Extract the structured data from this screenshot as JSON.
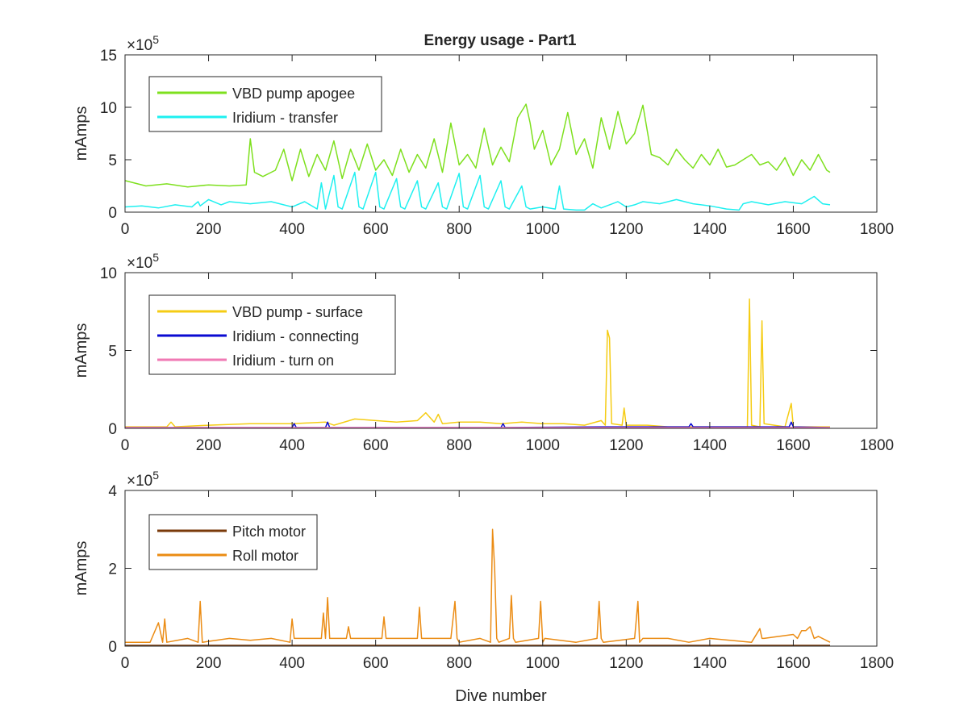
{
  "figure_title": "Energy usage - Part1",
  "colors": {
    "vbd_apogee": "#7ee01e",
    "iridium_transfer": "#1ef0f0",
    "vbd_surface": "#f5cc14",
    "iridium_connecting": "#0a0ad2",
    "iridium_turn_on": "#f07ab4",
    "pitch_motor": "#7a3a0a",
    "roll_motor": "#eb8c14",
    "axis": "#262626"
  },
  "chart_data": [
    {
      "type": "line",
      "title": "Energy usage - Part1",
      "xlabel": "",
      "ylabel": "mAmps",
      "exponent_label": "×10",
      "exponent_power": "5",
      "xlim": [
        0,
        1800
      ],
      "ylim": [
        0,
        15
      ],
      "xticks": [
        0,
        200,
        400,
        600,
        800,
        1000,
        1200,
        1400,
        1600,
        1800
      ],
      "xtick_labels": [
        "0",
        "200",
        "400",
        "600",
        "800",
        "1000",
        "1200",
        "1400",
        "1600",
        "1800"
      ],
      "yticks": [
        0,
        5,
        10,
        15
      ],
      "ytick_labels": [
        "0",
        "5",
        "10",
        "15"
      ],
      "legend_position": "top-left",
      "series": [
        {
          "name": "VBD pump apogee",
          "color_key": "vbd_apogee",
          "x": [
            1,
            50,
            100,
            150,
            200,
            250,
            290,
            300,
            310,
            330,
            360,
            380,
            400,
            420,
            440,
            460,
            480,
            500,
            520,
            540,
            560,
            580,
            600,
            620,
            640,
            660,
            680,
            700,
            720,
            740,
            760,
            780,
            800,
            820,
            840,
            860,
            880,
            900,
            920,
            940,
            960,
            970,
            980,
            1000,
            1020,
            1040,
            1060,
            1080,
            1100,
            1120,
            1140,
            1160,
            1180,
            1200,
            1220,
            1240,
            1260,
            1280,
            1300,
            1320,
            1340,
            1360,
            1380,
            1400,
            1420,
            1440,
            1460,
            1480,
            1500,
            1520,
            1540,
            1560,
            1580,
            1600,
            1620,
            1640,
            1660,
            1680,
            1688
          ],
          "y": [
            3.0,
            2.5,
            2.7,
            2.4,
            2.6,
            2.5,
            2.6,
            7.0,
            3.8,
            3.4,
            4.0,
            6.0,
            3.0,
            6.0,
            3.4,
            5.5,
            4.0,
            6.8,
            3.2,
            6.0,
            4.0,
            6.5,
            4.0,
            5.0,
            3.5,
            6.0,
            3.8,
            5.5,
            4.2,
            7.0,
            3.8,
            8.5,
            4.5,
            5.5,
            4.2,
            8.0,
            4.5,
            6.2,
            4.8,
            9.0,
            10.3,
            8.5,
            6.0,
            7.8,
            4.5,
            6.0,
            9.5,
            5.5,
            7.0,
            4.2,
            9.0,
            6.0,
            9.6,
            6.5,
            7.5,
            10.2,
            5.5,
            5.2,
            4.5,
            6.0,
            5.0,
            4.2,
            5.5,
            4.5,
            6.0,
            4.3,
            4.5,
            5.0,
            5.5,
            4.5,
            4.8,
            4.0,
            5.2,
            3.5,
            5.0,
            4.0,
            5.5,
            4.0,
            3.8
          ]
        },
        {
          "name": "Iridium - transfer",
          "color_key": "iridium_transfer",
          "x": [
            1,
            40,
            80,
            120,
            160,
            175,
            180,
            200,
            230,
            250,
            300,
            350,
            400,
            430,
            460,
            470,
            480,
            500,
            510,
            520,
            550,
            560,
            570,
            600,
            610,
            620,
            650,
            660,
            670,
            700,
            710,
            720,
            750,
            760,
            770,
            800,
            810,
            820,
            850,
            860,
            870,
            900,
            910,
            920,
            950,
            960,
            970,
            1000,
            1030,
            1040,
            1050,
            1080,
            1100,
            1120,
            1140,
            1180,
            1200,
            1220,
            1240,
            1280,
            1320,
            1360,
            1400,
            1440,
            1470,
            1480,
            1500,
            1540,
            1580,
            1620,
            1650,
            1670,
            1688
          ],
          "y": [
            0.5,
            0.6,
            0.4,
            0.7,
            0.5,
            1.0,
            0.6,
            1.2,
            0.7,
            1.0,
            0.8,
            1.0,
            0.5,
            1.0,
            0.3,
            2.8,
            0.3,
            3.5,
            0.5,
            0.3,
            3.8,
            0.5,
            0.3,
            3.8,
            0.5,
            0.3,
            3.2,
            0.5,
            0.3,
            3.0,
            0.5,
            0.3,
            2.8,
            0.5,
            0.3,
            3.7,
            0.5,
            0.3,
            3.5,
            0.5,
            0.3,
            3.0,
            0.5,
            0.3,
            2.5,
            0.5,
            0.3,
            0.5,
            0.3,
            2.5,
            0.3,
            0.2,
            0.2,
            0.8,
            0.4,
            1.0,
            0.5,
            0.7,
            1.0,
            0.8,
            1.2,
            0.8,
            0.6,
            0.3,
            0.2,
            0.8,
            1.0,
            0.7,
            1.0,
            0.8,
            1.5,
            0.8,
            0.7
          ]
        }
      ]
    },
    {
      "type": "line",
      "title": "",
      "xlabel": "",
      "ylabel": "mAmps",
      "exponent_label": "×10",
      "exponent_power": "5",
      "xlim": [
        0,
        1800
      ],
      "ylim": [
        0,
        10
      ],
      "xticks": [
        0,
        200,
        400,
        600,
        800,
        1000,
        1200,
        1400,
        1600,
        1800
      ],
      "xtick_labels": [
        "0",
        "200",
        "400",
        "600",
        "800",
        "1000",
        "1200",
        "1400",
        "1600",
        "1800"
      ],
      "yticks": [
        0,
        5,
        10
      ],
      "ytick_labels": [
        "0",
        "5",
        "10"
      ],
      "legend_position": "top-left",
      "series": [
        {
          "name": "VBD pump - surface",
          "color_key": "vbd_surface",
          "x": [
            1,
            100,
            110,
            120,
            200,
            300,
            400,
            480,
            500,
            550,
            600,
            650,
            700,
            720,
            740,
            750,
            760,
            800,
            850,
            900,
            950,
            1000,
            1050,
            1100,
            1140,
            1150,
            1155,
            1160,
            1165,
            1190,
            1195,
            1200,
            1250,
            1300,
            1400,
            1450,
            1490,
            1495,
            1500,
            1520,
            1525,
            1530,
            1580,
            1595,
            1600,
            1650,
            1688
          ],
          "y": [
            0.1,
            0.1,
            0.4,
            0.1,
            0.2,
            0.3,
            0.3,
            0.4,
            0.2,
            0.6,
            0.5,
            0.4,
            0.5,
            1.0,
            0.4,
            0.9,
            0.3,
            0.4,
            0.4,
            0.3,
            0.4,
            0.3,
            0.3,
            0.2,
            0.5,
            0.2,
            6.3,
            5.8,
            0.3,
            0.2,
            1.3,
            0.2,
            0.2,
            0.1,
            0.1,
            0.1,
            0.1,
            8.3,
            0.2,
            0.1,
            6.9,
            0.3,
            0.1,
            1.6,
            0.1,
            0.1,
            0.1
          ]
        },
        {
          "name": "Iridium - connecting",
          "color_key": "iridium_connecting",
          "x": [
            1,
            400,
            405,
            410,
            480,
            485,
            490,
            900,
            905,
            910,
            1140,
            1180,
            1350,
            1355,
            1360,
            1590,
            1595,
            1600,
            1688
          ],
          "y": [
            0.05,
            0.05,
            0.3,
            0.05,
            0.05,
            0.4,
            0.05,
            0.05,
            0.3,
            0.05,
            0.1,
            0.1,
            0.1,
            0.3,
            0.1,
            0.1,
            0.4,
            0.1,
            0.05
          ]
        },
        {
          "name": "Iridium - turn on",
          "color_key": "iridium_turn_on",
          "x": [
            1,
            1688
          ],
          "y": [
            0.05,
            0.05
          ]
        }
      ]
    },
    {
      "type": "line",
      "title": "",
      "xlabel": "Dive number",
      "ylabel": "mAmps",
      "exponent_label": "×10",
      "exponent_power": "5",
      "xlim": [
        0,
        1800
      ],
      "ylim": [
        0,
        4
      ],
      "xticks": [
        0,
        200,
        400,
        600,
        800,
        1000,
        1200,
        1400,
        1600,
        1800
      ],
      "xtick_labels": [
        "0",
        "200",
        "400",
        "600",
        "800",
        "1000",
        "1200",
        "1400",
        "1600",
        "1800"
      ],
      "yticks": [
        0,
        2,
        4
      ],
      "ytick_labels": [
        "0",
        "2",
        "4"
      ],
      "legend_position": "top-left",
      "series": [
        {
          "name": "Pitch motor",
          "color_key": "pitch_motor",
          "x": [
            1,
            1688
          ],
          "y": [
            0.02,
            0.02
          ]
        },
        {
          "name": "Roll motor",
          "color_key": "roll_motor",
          "x": [
            1,
            60,
            80,
            90,
            95,
            100,
            150,
            175,
            180,
            185,
            250,
            300,
            350,
            395,
            400,
            405,
            450,
            470,
            475,
            480,
            485,
            490,
            530,
            535,
            540,
            600,
            615,
            620,
            625,
            700,
            705,
            710,
            715,
            780,
            790,
            795,
            800,
            850,
            875,
            880,
            885,
            890,
            895,
            920,
            925,
            930,
            935,
            990,
            995,
            1000,
            1005,
            1080,
            1130,
            1135,
            1140,
            1145,
            1220,
            1228,
            1232,
            1240,
            1300,
            1350,
            1400,
            1500,
            1520,
            1525,
            1530,
            1600,
            1610,
            1620,
            1630,
            1640,
            1650,
            1660,
            1688
          ],
          "y": [
            0.1,
            0.1,
            0.6,
            0.1,
            0.7,
            0.1,
            0.2,
            0.1,
            1.15,
            0.1,
            0.2,
            0.15,
            0.2,
            0.1,
            0.7,
            0.2,
            0.2,
            0.2,
            0.85,
            0.2,
            1.25,
            0.2,
            0.2,
            0.5,
            0.2,
            0.2,
            0.2,
            0.75,
            0.2,
            0.2,
            1.0,
            0.2,
            0.2,
            0.2,
            1.15,
            0.2,
            0.1,
            0.2,
            0.1,
            3.0,
            2.0,
            0.2,
            0.1,
            0.2,
            1.3,
            0.2,
            0.1,
            0.2,
            1.15,
            0.1,
            0.2,
            0.1,
            0.2,
            1.15,
            0.2,
            0.1,
            0.2,
            1.15,
            0.1,
            0.2,
            0.2,
            0.1,
            0.2,
            0.1,
            0.45,
            0.2,
            0.2,
            0.3,
            0.2,
            0.4,
            0.4,
            0.5,
            0.2,
            0.25,
            0.1
          ]
        }
      ]
    }
  ]
}
